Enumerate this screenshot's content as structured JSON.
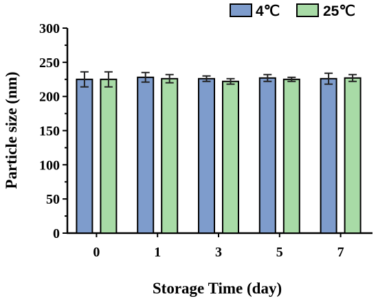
{
  "chart_data": {
    "type": "bar",
    "categories": [
      "0",
      "1",
      "3",
      "5",
      "7"
    ],
    "series": [
      {
        "name": "4℃",
        "color": "#7e9ccc",
        "values": [
          225,
          228,
          226,
          227,
          226
        ],
        "errors": [
          11,
          7,
          4,
          5,
          8
        ]
      },
      {
        "name": "25℃",
        "color": "#a8dba6",
        "values": [
          225,
          226,
          222,
          225,
          227
        ],
        "errors": [
          11,
          6,
          4,
          3,
          5
        ]
      }
    ],
    "xlabel": "Storage Time (day)",
    "ylabel": "Particle size (nm)",
    "ylim": [
      0,
      300
    ],
    "yticks": [
      "0",
      "50",
      "100",
      "150",
      "200",
      "250",
      "300"
    ],
    "legend": "top-right",
    "grid": false
  }
}
